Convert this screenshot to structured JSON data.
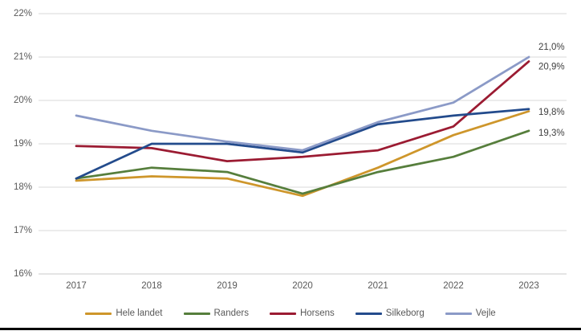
{
  "chart_data": {
    "type": "line",
    "title": "",
    "xlabel": "",
    "ylabel": "",
    "categories": [
      "2017",
      "2018",
      "2019",
      "2020",
      "2021",
      "2022",
      "2023"
    ],
    "series": [
      {
        "name": "Hele landet",
        "color": "#CE962B",
        "values": [
          18.15,
          18.25,
          18.2,
          17.8,
          18.45,
          19.2,
          19.75
        ],
        "end_label": null
      },
      {
        "name": "Randers",
        "color": "#567E3C",
        "values": [
          18.2,
          18.45,
          18.35,
          17.85,
          18.35,
          18.7,
          19.3
        ],
        "end_label": "19,3%"
      },
      {
        "name": "Horsens",
        "color": "#9B1B32",
        "values": [
          18.95,
          18.9,
          18.6,
          18.7,
          18.85,
          19.4,
          20.9
        ],
        "end_label": "20,9%"
      },
      {
        "name": "Silkeborg",
        "color": "#234B8C",
        "values": [
          18.2,
          19.0,
          19.0,
          18.8,
          19.45,
          19.65,
          19.8
        ],
        "end_label": "19,8%"
      },
      {
        "name": "Vejle",
        "color": "#8B9AC7",
        "values": [
          19.65,
          19.3,
          19.05,
          18.85,
          19.5,
          19.95,
          21.0
        ],
        "end_label": "21,0%"
      }
    ],
    "y_ticks": [
      "16%",
      "17%",
      "18%",
      "19%",
      "20%",
      "21%",
      "22%"
    ],
    "ylim": [
      16,
      22
    ],
    "grid": true,
    "legend_position": "bottom",
    "colors": {
      "axis_text": "#595959",
      "gridline": "#D9D9D9",
      "baseline": "#C9C9C9",
      "data_label": "#404040"
    }
  }
}
